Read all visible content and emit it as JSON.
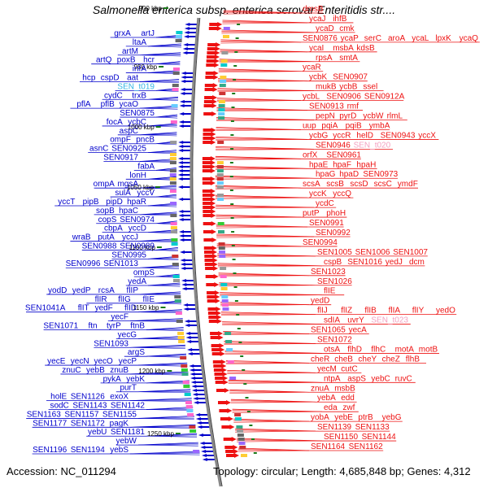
{
  "title": "Salmonella enterica subsp. enterica serovar Enteritidis str....",
  "footer": {
    "accession": "Accession: NC_011294",
    "topology": "Topology: circular; Length: 4,685,848 bp; Genes: 4,312"
  },
  "colors": {
    "left_strand": "#0000cc",
    "right_strand": "#ee1111",
    "rna_gene": "#33b5e5",
    "pseudo_gene": "#f4a0c0",
    "backbone": "#888888",
    "tick": "#1a7a1a"
  },
  "ticks": [
    "900 kbp",
    "950 kbp",
    "1000 kbp",
    "1050 kbp",
    "1100 kbp",
    "1150 kbp",
    "1200 kbp",
    "1250 kbp"
  ],
  "left_genes": [
    [
      "grxA",
      "artJ"
    ],
    [
      "ltaA"
    ],
    [
      "artM"
    ],
    [
      "artQ",
      "poxB",
      "hcr"
    ],
    [
      "infA"
    ],
    [
      "hcp",
      "cspD",
      "aat"
    ],
    [
      "SEN_t019"
    ],
    [
      "cydC",
      "trxB"
    ],
    [
      "pflA",
      "pflB",
      "ycaO"
    ],
    [
      "SEN0875"
    ],
    [
      "focA",
      "ycbC"
    ],
    [
      "aspC"
    ],
    [
      "ompF",
      "pncB"
    ],
    [
      "asnC",
      "SEN0925"
    ],
    [
      "SEN0917"
    ],
    [
      "fabA"
    ],
    [
      "lonH"
    ],
    [
      "ompA",
      "mgsA"
    ],
    [
      "sulA",
      "yccV"
    ],
    [
      "yccT",
      "pipB",
      "pipD",
      "hpaR"
    ],
    [
      "sopB",
      "hpaC"
    ],
    [
      "copS",
      "SEN0974"
    ],
    [
      "cbpA",
      "yccD"
    ],
    [
      "wraB",
      "putA",
      "yccJ"
    ],
    [
      "SEN0988",
      "SEN0989"
    ],
    [
      "SEN0995"
    ],
    [
      "SEN0996",
      "SEN1013"
    ],
    [
      "ompS"
    ],
    [
      "yedA"
    ],
    [
      "yodD",
      "yedP",
      "rcsA",
      "flIP"
    ],
    [
      "flIR",
      "flIG",
      "flIE"
    ],
    [
      "SEN1041A",
      "flIT",
      "yedF",
      "flID"
    ],
    [
      "yecF"
    ],
    [
      "SEN1071",
      "ftn",
      "tyrP",
      "ftnB"
    ],
    [
      "yecG"
    ],
    [
      "SEN1093"
    ],
    [
      "argS"
    ],
    [
      "yecE",
      "yecN",
      "yecO",
      "yecP"
    ],
    [
      "znuC",
      "yebB",
      "znuB"
    ],
    [
      "pykA",
      "yebK"
    ],
    [
      "purT"
    ],
    [
      "holE",
      "SEN1126",
      "exoX"
    ],
    [
      "sodC",
      "SEN1143",
      "SEN1142"
    ],
    [
      "SEN1163",
      "SEN1157",
      "SEN1155"
    ],
    [
      "SEN1177",
      "SEN1172",
      "pagK"
    ],
    [
      "yebU",
      "SEN1181"
    ],
    [
      "yebW"
    ],
    [
      "SEN1196",
      "SEN1194",
      "yebS"
    ]
  ],
  "right_genes": [
    [
      "dmsB"
    ],
    [
      "ycaJ",
      "ihfB"
    ],
    [
      "ycaD",
      "cmk"
    ],
    [
      "SEN0876",
      "ycaP",
      "serC",
      "aroA",
      "ycaL",
      "lpxK",
      "ycaQ"
    ],
    [
      "ycaI",
      "msbA",
      "kdsB"
    ],
    [
      "rpsA",
      "smtA"
    ],
    [
      "ycaR"
    ],
    [
      "ycbK",
      "SEN0907"
    ],
    [
      "mukB",
      "ycbB",
      "ssel"
    ],
    [
      "ycbL",
      "SEN0906",
      "SEN0912A"
    ],
    [
      "SEN0913",
      "rmf"
    ],
    [
      "pepN",
      "pyrD",
      "ycbW",
      "rlmL"
    ],
    [
      "uup",
      "pqiA",
      "pqiB",
      "ymbA"
    ],
    [
      "ycbG",
      "yccR",
      "helD",
      "SEN0943",
      "yccX"
    ],
    [
      "SEN0946",
      "SEN_t020"
    ],
    [
      "orfX",
      "SEN0961"
    ],
    [
      "hpaE",
      "hpaF",
      "hpaH"
    ],
    [
      "hpaG",
      "hpaD",
      "SEN0973"
    ],
    [
      "scsA",
      "scsB",
      "scsD",
      "scsC",
      "ymdF"
    ],
    [
      "yccK",
      "yccQ"
    ],
    [
      "ycdC"
    ],
    [
      "putP",
      "phoH"
    ],
    [
      "SEN0991"
    ],
    [
      "SEN0992"
    ],
    [
      "SEN0994"
    ],
    [
      "SEN1005",
      "SEN1006",
      "SEN1007"
    ],
    [
      "cspB",
      "SEN1016",
      "yedJ",
      "dcm"
    ],
    [
      "SEN1023"
    ],
    [
      "SEN1026"
    ],
    [
      "flIE"
    ],
    [
      "yedD"
    ],
    [
      "flIJ",
      "flIZ",
      "flIB",
      "flIA",
      "flIY",
      "yedO"
    ],
    [
      "sdIA",
      "uvrY",
      "SEN_t023"
    ],
    [
      "SEN1065",
      "yecA"
    ],
    [
      "SEN1072"
    ],
    [
      "otsA",
      "flhD",
      "flhC",
      "motA",
      "motB"
    ],
    [
      "cheR",
      "cheB",
      "cheY",
      "cheZ",
      "flhB"
    ],
    [
      "yecM",
      "cutC"
    ],
    [
      "ntpA",
      "aspS",
      "yebC",
      "ruvC"
    ],
    [
      "znuA",
      "msbB"
    ],
    [
      "yebA",
      "edd"
    ],
    [
      "eda",
      "zwf"
    ],
    [
      "yobA",
      "yebE",
      "ptrB",
      "yebG"
    ],
    [
      "SEN1139",
      "SEN1133"
    ],
    [
      "SEN1150",
      "SEN1144"
    ],
    [
      "SEN1164",
      "SEN1162"
    ]
  ]
}
